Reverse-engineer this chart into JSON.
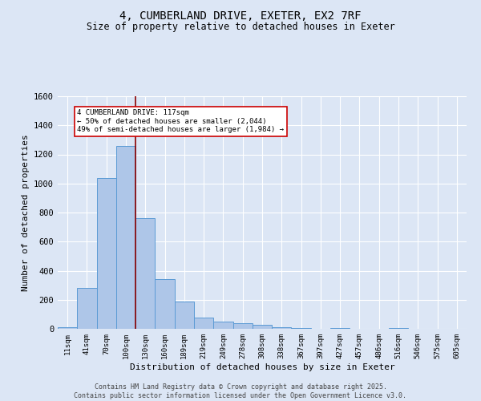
{
  "title_line1": "4, CUMBERLAND DRIVE, EXETER, EX2 7RF",
  "title_line2": "Size of property relative to detached houses in Exeter",
  "xlabel": "Distribution of detached houses by size in Exeter",
  "ylabel": "Number of detached properties",
  "categories": [
    "11sqm",
    "41sqm",
    "70sqm",
    "100sqm",
    "130sqm",
    "160sqm",
    "189sqm",
    "219sqm",
    "249sqm",
    "278sqm",
    "308sqm",
    "338sqm",
    "367sqm",
    "397sqm",
    "427sqm",
    "457sqm",
    "486sqm",
    "516sqm",
    "546sqm",
    "575sqm",
    "605sqm"
  ],
  "values": [
    10,
    280,
    1040,
    1260,
    760,
    340,
    185,
    80,
    48,
    37,
    25,
    13,
    8,
    0,
    5,
    0,
    0,
    8,
    0,
    0,
    0
  ],
  "bar_color": "#aec6e8",
  "bar_edge_color": "#5b9bd5",
  "bg_color": "#dce6f5",
  "grid_color": "#ffffff",
  "vline_x_index": 3.5,
  "vline_color": "#8b0000",
  "annotation_text": "4 CUMBERLAND DRIVE: 117sqm\n← 50% of detached houses are smaller (2,044)\n49% of semi-detached houses are larger (1,984) →",
  "annotation_box_color": "#ffffff",
  "annotation_box_edge_color": "#cc0000",
  "ylim": [
    0,
    1600
  ],
  "yticks": [
    0,
    200,
    400,
    600,
    800,
    1000,
    1200,
    1400,
    1600
  ],
  "footer_line1": "Contains HM Land Registry data © Crown copyright and database right 2025.",
  "footer_line2": "Contains public sector information licensed under the Open Government Licence v3.0."
}
